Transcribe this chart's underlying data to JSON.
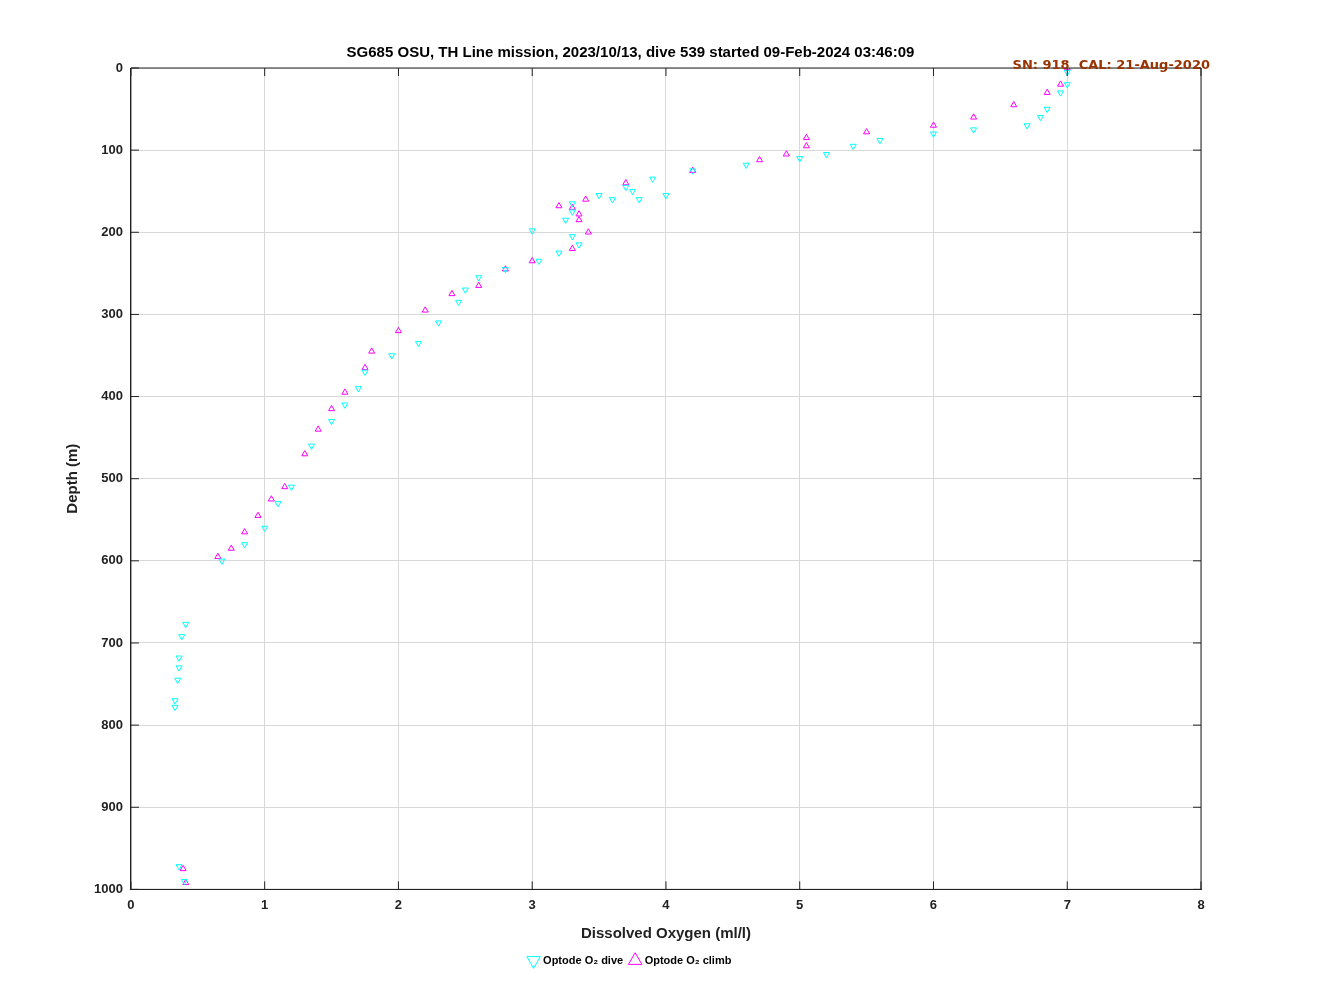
{
  "chart_data": {
    "type": "scatter",
    "title": "SG685 OSU, TH Line mission, 2023/10/13, dive 539 started 09-Feb-2024 03:46:09",
    "xlabel": "Dissolved Oxygen (ml/l)",
    "ylabel": "Depth (m)",
    "annotations": [
      "SN: 918  CAL: 21-Aug-2020"
    ],
    "xlim": [
      0,
      8
    ],
    "xticks": [
      0,
      1,
      2,
      3,
      4,
      5,
      6,
      7,
      8
    ],
    "ylim": [
      1000,
      0
    ],
    "yticks": [
      0,
      100,
      200,
      300,
      400,
      500,
      600,
      700,
      800,
      900,
      1000
    ],
    "grid": true,
    "legend": "bottom",
    "marker": "triangle",
    "series": [
      {
        "name": "Optode O₂ dive",
        "color": "#00ffff",
        "x": [
          7.0,
          7.0,
          6.95,
          6.85,
          6.8,
          6.7,
          6.3,
          6.0,
          5.6,
          5.4,
          5.2,
          5.0,
          4.6,
          4.2,
          3.9,
          3.7,
          3.75,
          4.0,
          3.8,
          3.6,
          3.5,
          3.3,
          3.3,
          3.25,
          3.0,
          3.3,
          3.35,
          3.2,
          3.05,
          2.8,
          2.6,
          2.5,
          2.45,
          2.3,
          2.15,
          1.95,
          1.75,
          1.7,
          1.6,
          1.5,
          1.35,
          1.2,
          1.1,
          1.0,
          0.85,
          0.68,
          0.41,
          0.38,
          0.36,
          0.36,
          0.35,
          0.33,
          0.33,
          0.36,
          0.4
        ],
        "values": [
          5,
          20,
          30,
          50,
          60,
          70,
          75,
          80,
          88,
          95,
          105,
          110,
          118,
          125,
          135,
          145,
          150,
          155,
          160,
          160,
          155,
          165,
          175,
          185,
          198,
          205,
          215,
          225,
          235,
          245,
          255,
          270,
          285,
          310,
          335,
          350,
          370,
          390,
          410,
          430,
          460,
          510,
          530,
          560,
          580,
          600,
          677,
          692,
          718,
          730,
          745,
          770,
          778,
          972,
          990
        ]
      },
      {
        "name": "Optode O₂ climb",
        "color": "#ff00ff",
        "x": [
          0.41,
          0.39,
          0.65,
          0.75,
          0.85,
          0.95,
          1.05,
          1.15,
          1.3,
          1.4,
          1.5,
          1.6,
          1.75,
          1.8,
          2.0,
          2.2,
          2.4,
          2.6,
          2.8,
          3.0,
          3.3,
          3.42,
          3.35,
          3.35,
          3.3,
          3.2,
          3.4,
          3.7,
          4.2,
          4.7,
          4.9,
          5.05,
          5.05,
          5.5,
          6.0,
          6.3,
          6.6,
          6.85,
          6.95,
          7.0
        ],
        "values": [
          992,
          975,
          595,
          585,
          565,
          545,
          525,
          510,
          470,
          440,
          415,
          395,
          365,
          345,
          320,
          295,
          275,
          265,
          245,
          235,
          220,
          200,
          185,
          178,
          170,
          168,
          160,
          140,
          125,
          112,
          105,
          95,
          85,
          78,
          70,
          60,
          45,
          30,
          20,
          0
        ]
      }
    ]
  }
}
